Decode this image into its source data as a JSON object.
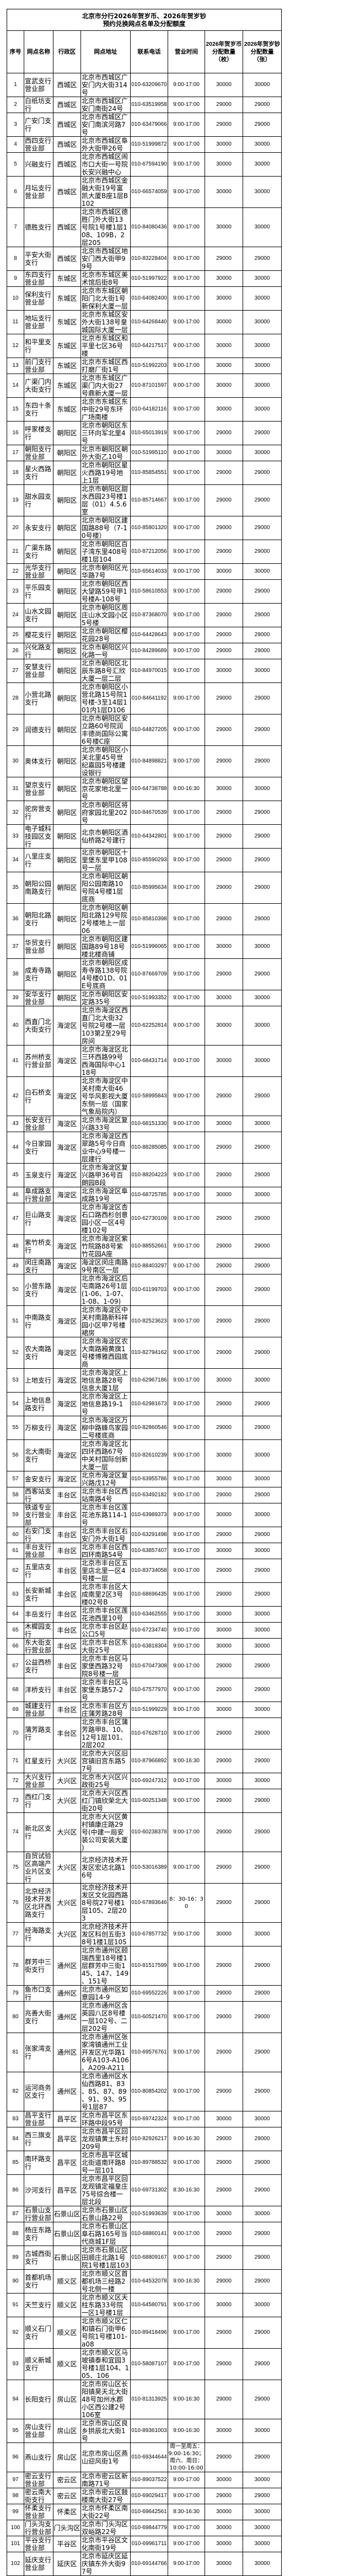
{
  "title": "北京市分行2026年贺岁币、2026年贺岁钞\n预约兑换网点名单及分配额度",
  "headers": [
    "序号",
    "网点名称",
    "行政区",
    "网点地址",
    "联系电话",
    "营业时间",
    "2026年贺岁币\n分配数量\n（枚）",
    "2026年贺岁钞\n分配数量\n（张）"
  ],
  "rows": [
    [
      "1",
      "宣武支行营业部",
      "西城区",
      "北京市西城区广安门内大街314号",
      "010-63209670",
      "9:00-17:00",
      "30000",
      "30000"
    ],
    [
      "2",
      "白纸坊支行",
      "西城区",
      "北京市西城区广安门南街24号",
      "010-63519958",
      "9:00-17:00",
      "29000",
      "29000"
    ],
    [
      "3",
      "广安门支行",
      "西城区",
      "北京市西城区广安门南滨河路7号",
      "010-63479066",
      "9:00-17:00",
      "29000",
      "29000"
    ],
    [
      "4",
      "西四支行营业部",
      "西城区",
      "北京市西城区阜外大街甲26号",
      "010-51999872",
      "9:00-17:00",
      "30000",
      "30000"
    ],
    [
      "5",
      "兴融支行",
      "西城区",
      "北京市西城区闹市口大街一号院长安兴融中心",
      "010-67594190",
      "9:00-17:00",
      "30000",
      "30000"
    ],
    [
      "6",
      "月坛支行营业部",
      "西城区",
      "北京市西城区金融大街19号富凯大厦B座1层B102",
      "010-66574059",
      "9:00-17:00",
      "30000",
      "30000"
    ],
    [
      "7",
      "德胜支行",
      "西城区",
      "北京市西城区德胜门外大街13号院1号楼1层108、109B，2层205",
      "010-84080436",
      "9:00-17:00",
      "30000",
      "30000"
    ],
    [
      "8",
      "平安大街支行",
      "西城区",
      "北京市西城区地安门西大街甲99号",
      "010-83228404",
      "9:00-17:00",
      "29000",
      "29000"
    ],
    [
      "9",
      "东四支行营业部",
      "东城区",
      "北京市东城区美术馆后街8号",
      "010-51997922",
      "9:00-17:00",
      "30000",
      "30000"
    ],
    [
      "10",
      "保利支行营业部",
      "东城区",
      "北京市东城区朝阳门北大街1号新保利大厦一层",
      "010-64082400",
      "9:00-17:00",
      "30000",
      "30000"
    ],
    [
      "11",
      "地坛支行营业部",
      "东城区",
      "北京市东城区安外大街138号皇城国际大厦一层",
      "010-64268440",
      "9:00-17:00",
      "30000",
      "30000"
    ],
    [
      "12",
      "和平里支行",
      "东城区",
      "北京市东城区和平里七区36号楼",
      "010-64217517",
      "9:00-17:00",
      "30000",
      "30000"
    ],
    [
      "13",
      "前门支行营业部",
      "东城区",
      "北京市东城区西打磨厂街1号",
      "010-51992203",
      "9:00-17:00",
      "30000",
      "30000"
    ],
    [
      "14",
      "广渠门内大街支行",
      "东城区",
      "北京市东城区广渠门内大街27号鼎新大厦一层",
      "010-87101597",
      "9:00-17:00",
      "30000",
      "30000"
    ],
    [
      "15",
      "东四十条支行",
      "东城区",
      "北京市东城区东中街29号东环广场南楼",
      "010-64182116",
      "9:00-17:00",
      "30000",
      "30000"
    ],
    [
      "16",
      "呼家楼支行",
      "朝阳区",
      "北京市朝阳区东三环向军北里4号",
      "010-65013919",
      "9:00-17:00",
      "29000",
      "29000"
    ],
    [
      "17",
      "朝阳支行营业部",
      "朝阳区",
      "北京市朝阳区朝外大街乙10号",
      "010-51995110",
      "9:00-17:00",
      "30000",
      "30000"
    ],
    [
      "18",
      "星火西路支行",
      "朝阳区",
      "北京市朝阳区星火西路19号地上1层",
      "010-85854551",
      "9:00-17:00",
      "29000",
      "29000"
    ],
    [
      "19",
      "甜水园支行",
      "朝阳区",
      "北京市朝阳区甜水西园23号楼1层（01）4.5.6室",
      "010-85714667",
      "9:00-17:00",
      "29000",
      "29000"
    ],
    [
      "20",
      "永安支行",
      "朝阳区",
      "北京市朝阳区建国路88号（7-10号楼）",
      "010-85801320",
      "9:00-17:00",
      "29000",
      "29000"
    ],
    [
      "21",
      "广渠东路支行",
      "朝阳区",
      "北京市朝阳区百子湾东里408号楼1层104",
      "010-87212056",
      "9:00-17:00",
      "29000",
      "29000"
    ],
    [
      "22",
      "光华支行营业部",
      "朝阳区",
      "北京市朝阳区光华路7号",
      "010-65614033",
      "9:00-17:00",
      "30000",
      "30000"
    ],
    [
      "23",
      "平乐园支行",
      "朝阳区",
      "北京市朝阳区西大望路59号甲1号楼A-108号",
      "010-58610553",
      "9:00-17:00",
      "29000",
      "29000"
    ],
    [
      "24",
      "山水文园支行",
      "朝阳区",
      "北京市朝阳区周庄山水文园小区5号楼",
      "010-87368070",
      "9:00-17:00",
      "29000",
      "29000"
    ],
    [
      "25",
      "樱花支行",
      "朝阳区",
      "北京市朝阳区樱花园28号",
      "010-64428643",
      "9:00-17:00",
      "29000",
      "29000"
    ],
    [
      "26",
      "兴化路支行",
      "朝阳区",
      "北京市朝阳区兴化路一号",
      "010-84289689",
      "9:00-17:00",
      "29000",
      "29000"
    ],
    [
      "27",
      "安慧支行营业部",
      "朝阳区",
      "北京市朝阳区北辰东路8号汇欣大厦一层二层",
      "010-84970015",
      "9:00-17:00",
      "30000",
      "30000"
    ],
    [
      "28",
      "小营北路支行",
      "朝阳区",
      "北京市朝阳区小营北路15号院1号楼-3至14层101内1层D106",
      "010-84641192",
      "9:00-17:00",
      "29000",
      "29000"
    ],
    [
      "29",
      "润德支行",
      "朝阳区",
      "北京市朝阳区安立路60号院润丰德尚国际公寓6号楼C座",
      "010-64827205",
      "9:00-17:00",
      "29000",
      "29000"
    ],
    [
      "30",
      "奥体支行",
      "朝阳区",
      "北京市朝阳区小关北里45号世纪嘉园5号楼建设银行",
      "010-84898821",
      "9:00-17:00",
      "29000",
      "29000"
    ],
    [
      "31",
      "望京支行营业部",
      "朝阳区",
      "北京市朝阳区望京花家地北里一号",
      "010-64738788",
      "9:00-16:30",
      "30000",
      "30000"
    ],
    [
      "32",
      "驼房营支行",
      "朝阳区",
      "北京市朝阳区将府家园北里202号",
      "010-84670539",
      "9:00-17:00",
      "29000",
      "29000"
    ],
    [
      "33",
      "电子城科技园区支行",
      "朝阳区",
      "北京市朝阳区酒仙桥路2号建行",
      "010-64342801",
      "9:00-17:00",
      "29000",
      "29000"
    ],
    [
      "34",
      "八里庄支行",
      "朝阳区",
      "北京市朝阳区十里堡东里甲108号一层",
      "010-85590293",
      "9:00-17:00",
      "29000",
      "29000"
    ],
    [
      "35",
      "朝阳公园南路支行",
      "朝阳区",
      "北京市朝阳区朝阳公园南路10号院4号楼1层底商",
      "010-85995634",
      "9:00-17:00",
      "29000",
      "29000"
    ],
    [
      "36",
      "朝阳北路支行",
      "朝阳区",
      "北京市朝阳区朝阳北路129号院2号楼地上一层06",
      "010-85810398",
      "9:00-17:00",
      "29000",
      "29000"
    ],
    [
      "37",
      "华贸支行营业部",
      "朝阳区",
      "北京市朝阳区建国路89号18号楼北楼商铺",
      "010-51996065",
      "9:00-17:00",
      "30000",
      "30000"
    ],
    [
      "38",
      "成寿寺路支行",
      "朝阳区",
      "北京市朝阳区成寿寺路138号院4号楼01D、01E号底商",
      "010-87669709",
      "9:00-17:00",
      "29000",
      "29000"
    ],
    [
      "39",
      "安华支行营业部",
      "朝阳区",
      "北京市朝阳区安定路35号",
      "010-51993352",
      "9:00-17:00",
      "30000",
      "30000"
    ],
    [
      "40",
      "西直门北大街支行",
      "海淀区",
      "北京市海淀区西直门北大街32号院2号楼一层103第2至29号房间",
      "010-62252814",
      "9:00-17:00",
      "30000",
      "30000"
    ],
    [
      "41",
      "苏州桥支行营业部",
      "海淀区",
      "北京市海淀区北三环西路99号西海国际中心118号",
      "010-68431714",
      "9:00-17:00",
      "30000",
      "30000"
    ],
    [
      "42",
      "白石桥支行",
      "海淀区",
      "北京市海淀区中关村南大街46号华风影视大厦东侧一层（国家气象局院内）",
      "010-58995843",
      "9:00-17:00",
      "29000",
      "29000"
    ],
    [
      "43",
      "长安支行营业部",
      "海淀区",
      "北京市海淀区复兴路33号",
      "010-68151330",
      "9:00-17:00",
      "30000",
      "30000"
    ],
    [
      "44",
      "今日家园支行",
      "海淀区",
      "北京市海淀区西翠路5号今日商业中心9号楼一层建行",
      "010-88285085",
      "9:00-17:00",
      "29000",
      "29000"
    ],
    [
      "45",
      "玉泉支行",
      "海淀区",
      "北京市海淀区复兴路甲36号百朗园B段",
      "010-88204223",
      "9:00-17:00",
      "29000",
      "29000"
    ],
    [
      "46",
      "阜成路支行营业部",
      "海淀区",
      "北京市海淀区阜成路19号",
      "010-68725785",
      "9:00-17:00",
      "30000",
      "30000"
    ],
    [
      "47",
      "巨山路支行",
      "海淀区",
      "北京市海淀区杏石口路西杉创意园小区一区4号楼102号",
      "010-62730109",
      "9:00-17:00",
      "29000",
      "29000"
    ],
    [
      "48",
      "紫竹桥支行",
      "海淀区",
      "北京市海淀区紫竹院路88号紫竹花园A座",
      "010-88552661",
      "9:00-17:00",
      "29000",
      "29000"
    ],
    [
      "49",
      "闵庄南路支行",
      "海淀区",
      "海淀区闵庄南路9号南区一层",
      "010-88403297",
      "9:00-17:00",
      "29000",
      "29000"
    ],
    [
      "50",
      "小营东路支行",
      "海淀区",
      "北京市海淀区后屯南路26号1层(1-06、1-07、1-08、1-09)",
      "010-61199703",
      "9:00-17:00",
      "29000",
      "29000"
    ],
    [
      "51",
      "中南路支行",
      "海淀区",
      "北京市海淀区中关村南路新科祥园小区甲7号楼裙房",
      "010-82523623",
      "9:00-17:00",
      "29000",
      "29000"
    ],
    [
      "52",
      "农大南路支行",
      "海淀区",
      "北京市海淀区农大南路厢黄旗1号楼博雅西园底商",
      "010-82794162",
      "9:00-17:00",
      "29000",
      "29000"
    ],
    [
      "53",
      "上地支行",
      "海淀区",
      "北京市海淀区上地信息路28号信息大厦1层",
      "010-62967186",
      "9:00-17:00",
      "30000",
      "30000"
    ],
    [
      "54",
      "上地信息路支行",
      "海淀区",
      "北京市海淀区上地信息路19-1号",
      "010-62981673",
      "9:00-17:00",
      "29000",
      "29000"
    ],
    [
      "55",
      "万柳支行",
      "海淀区",
      "北京市海淀区万柳中路蜂鸟家园二号楼底商",
      "010-82860546",
      "9:00-17:00",
      "29000",
      "29000"
    ],
    [
      "56",
      "北大南街支行",
      "海淀区",
      "北京市海淀区北四环西路67号中关村国际创新大厦一层",
      "010-82610239",
      "9:00-17:00",
      "30000",
      "30000"
    ],
    [
      "57",
      "金安支行",
      "海淀区",
      "北京市海淀区复兴路戊12号",
      "010-63955786",
      "9:00-17:00",
      "30000",
      "30000"
    ],
    [
      "58",
      "西客站支行",
      "丰台区",
      "北京市丰台区西站南路4号",
      "010-63492182",
      "9:00-17:00",
      "29000",
      "29000"
    ],
    [
      "59",
      "铁道专业支行营业部",
      "丰台区",
      "北京市丰台区莲花池东路114-1号",
      "010-63989373",
      "9:00-17:00",
      "30000",
      "30000"
    ],
    [
      "60",
      "右安门支行",
      "丰台区",
      "北京市丰台区右安门外大街1号",
      "010-63291498",
      "9:00-17:00",
      "29000",
      "29000"
    ],
    [
      "61",
      "丰台支行营业部",
      "丰台区",
      "北京市丰台区西四环南路54号",
      "010-63857407",
      "9:00-17:00",
      "30000",
      "30000"
    ],
    [
      "62",
      "五里店支行",
      "丰台区",
      "北京市丰台区五里店北里一区4号楼一层",
      "010-83734058",
      "9:00-17:00",
      "29000",
      "29000"
    ],
    [
      "63",
      "长安新城支行",
      "丰台区",
      "北京市丰台区大成南里2区3号楼02号B",
      "010-68696435",
      "9:00-17:00",
      "29000",
      "29000"
    ],
    [
      "64",
      "丰岳支行",
      "丰台区",
      "北京市丰台区莲花池西里10号",
      "010-63462555",
      "9:00-17:00",
      "30000",
      "30000"
    ],
    [
      "65",
      "木樨园支行",
      "丰台区",
      "北京市丰台区赵公口5号",
      "010-67234740",
      "9:00-17:00",
      "30000",
      "30000"
    ],
    [
      "66",
      "东大街支行营业部",
      "丰台区",
      "北京市丰台区东大街25号",
      "010-63818304",
      "9:00-17:00",
      "30000",
      "30000"
    ],
    [
      "67",
      "公益西桥支行",
      "丰台区",
      "北京市丰台区马家堡西路32号院8号楼一层",
      "010-67047308",
      "9:00-17:00",
      "29000",
      "29000"
    ],
    [
      "68",
      "洋桥支行",
      "丰台区",
      "北京市丰台区马家堡东路57-2号",
      "010-67577970",
      "9:00-17:00",
      "29000",
      "29000"
    ],
    [
      "69",
      "城建支行营业部",
      "丰台区",
      "北京市丰台区方庄蒲芳路28号",
      "010-51999229",
      "9:00-17:00",
      "30000",
      "30000"
    ],
    [
      "70",
      "蒲芳路支行",
      "丰台区",
      "北京市丰台区蒲芳路甲8、10、12号1层101、2层202",
      "010-67628710",
      "9:00-17:00",
      "29000",
      "29000"
    ],
    [
      "71",
      "红星支行",
      "大兴区",
      "北京市大兴区旧宫镇旧宫东路57号",
      "010-87966892",
      "9:00-16:30",
      "29000",
      "29000"
    ],
    [
      "72",
      "大兴支行营业部",
      "大兴区",
      "北京市大兴区兴政街25号",
      "010-69247312",
      "9:00-17:00",
      "30000",
      "30000"
    ],
    [
      "73",
      "西红门支行",
      "大兴区",
      "北京市大兴区西红门镇欣荣北大街20号",
      "010-60251348",
      "9:00-17:00",
      "29000",
      "29000"
    ],
    [
      "74",
      "新北区支行",
      "大兴区",
      "北京市大兴区黄村镇康庄路29号(中建一局安装公司安装大厦)",
      "010-60238378",
      "9:00-17:00",
      "29000",
      "29000"
    ],
    [
      "75",
      "自贸试验区高端产业片区支行",
      "大兴区",
      "北京经济技术开发区宏达北路16号",
      "010-53016389",
      "9:00-17:00",
      "29000",
      "29000"
    ],
    [
      "76",
      "北京经济技术开发区北环西路支行",
      "大兴区",
      "北京经济技术开发区文化园西路8号院27号楼1层105、2层203",
      "010-67893646",
      "8：30-16：30",
      "29000",
      "29000"
    ],
    [
      "77",
      "经海路支行",
      "大兴区",
      "北京经济技术开发区科创五街38号1楼1层105",
      "010-67857732",
      "9:00-17:00",
      "30000",
      "30000"
    ],
    [
      "78",
      "群芳中三街支行",
      "通州区",
      "北京市通州区颐瑞西里18号楼1层群芳中三街145、147、149、151号",
      "010-81517599",
      "9:00-17:00",
      "29000",
      "29000"
    ],
    [
      "79",
      "鱼市口支行",
      "通州区",
      "北京市通州区如意园14-9",
      "010-69552226",
      "9:00-17:00",
      "29000",
      "29000"
    ],
    [
      "80",
      "兆善大街支行",
      "通州区",
      "北京市通州区含英园八区8号楼一层102号、二层202号",
      "010-60521470",
      "9:00-17:00",
      "29000",
      "29000"
    ],
    [
      "81",
      "张家湾支行",
      "通州区",
      "北京市通州区张家湾镇通州工业开发区光华路16号A103-A106、A209-A211",
      "010-69576761",
      "9:00-17:00",
      "29000",
      "29000"
    ],
    [
      "82",
      "运河商务区支行",
      "通州区",
      "北京市通州区水仙西路81、83、85、87、89、91、93、95号1层87",
      "010-80854202",
      "9:00-17:00",
      "29000",
      "29000"
    ],
    [
      "83",
      "昌平支行营业部",
      "昌平区",
      "北京市昌平区东环路中段95号",
      "010-69742324",
      "9:00-17:00",
      "30000",
      "30000"
    ],
    [
      "84",
      "西三旗支行",
      "昌平区",
      "北京市昌平区回龙观镇黄土东村209号",
      "010-82926217",
      "9:00-16:30",
      "29000",
      "29000"
    ],
    [
      "85",
      "南环路支行",
      "昌平区",
      "北京市昌平区城北街道南环路8号一层101",
      "010-89788532",
      "9:00-17:00",
      "29000",
      "29000"
    ],
    [
      "86",
      "沙河支行",
      "昌平区",
      "北京市昌平区回龙观镇定福皇庄75号综合楼一层北段",
      "010-69731302",
      "8:30-16:30",
      "29000",
      "29000"
    ],
    [
      "87",
      "石景山支行营业部",
      "石景山区",
      "北京市石景山区石景山路22号",
      "010-51993639",
      "9:00-17:00",
      "30000",
      "30000"
    ],
    [
      "88",
      "杨庄东路支行",
      "石景山区",
      "北京市石景山区阜石路165号当代商城1F层",
      "010-68860141",
      "9:00-17:00",
      "29000",
      "29000"
    ],
    [
      "89",
      "古城西街支行",
      "石景山区",
      "北京市石景山区田顺庄北路1号院1号楼1层103",
      "010-68809167",
      "9:00-17:00",
      "29000",
      "29000"
    ],
    [
      "90",
      "首都机场支行",
      "顺义区",
      "北京市顺义区首都机场三经路2号北侧一楼",
      "010-64532078",
      "9:00-16:30",
      "29000",
      "29000"
    ],
    [
      "91",
      "天竺支行",
      "顺义区",
      "北京市顺义区天柱东路33号院一区1号楼1层",
      "010-64580791",
      "9:00-17:00",
      "30000",
      "30000"
    ],
    [
      "92",
      "顺义石门支行",
      "顺义区",
      "北京市顺义区仁和镇石门街甲6号院1号楼101-a08",
      "010-89418496",
      "9:00-17:00",
      "29000",
      "29000"
    ],
    [
      "93",
      "顺义新城支行",
      "顺义区",
      "北京市顺义区马坡镇泰和宜园3号楼1层104、105、106",
      "010-58087107",
      "9:00-17:00",
      "29000",
      "29000"
    ],
    [
      "94",
      "长阳支行",
      "房山区",
      "北京市房山区长阳镇昊天北大街48号加州水郡小区西公建2号106室",
      "010-81313925",
      "9:00-16:30",
      "29000",
      "29000"
    ],
    [
      "95",
      "房山支行营业部",
      "房山区",
      "北京市房山区良乡拱辰北大街1号",
      "010-89361003",
      "9:00-16:30",
      "30000",
      "30000"
    ],
    [
      "96",
      "燕山支行",
      "房山区",
      "北京市房山区燕山迎风街1号",
      "010-69344644",
      "周一至周五：\n9:00-16:30；\n周六、周日：\n10:00-16:00",
      "29000",
      "29000"
    ],
    [
      "97",
      "密云支行营业部",
      "密云区",
      "北京市密云区新南路71号",
      "010-89037522",
      "9:00-17:00",
      "30000",
      "30000"
    ],
    [
      "98",
      "密云南大街支行",
      "密云区",
      "北京市密云区鼓楼南大街27号",
      "010-69029417",
      "9:00-17:00",
      "29000",
      "29000"
    ],
    [
      "99",
      "怀柔支行营业部",
      "怀柔区",
      "北京市怀柔区南大街22号",
      "010-69642561",
      "8:30-16:30",
      "30000",
      "30000"
    ],
    [
      "100",
      "门头沟支行营业部",
      "门头沟区",
      "北京市门头沟区双峪路22号",
      "010-69844779",
      "9:00-17:00",
      "30000",
      "30000"
    ],
    [
      "101",
      "平谷支行营业部",
      "平谷区",
      "北京市平谷区文化南街19号",
      "010-69961711",
      "9:00-17:00",
      "30000",
      "30000"
    ],
    [
      "102",
      "延庆支行营业部",
      "延庆区",
      "北京市延庆区延庆镇东外大街97号",
      "010-69144766",
      "9:00-17:00",
      "30000",
      "30000"
    ]
  ]
}
